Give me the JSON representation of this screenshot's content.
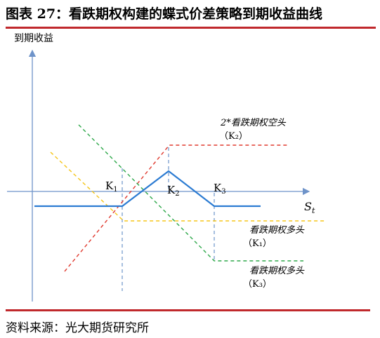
{
  "title": "图表 27：看跌期权构建的蝶式价差策略到期收益曲线",
  "source": "资料来源：光大期货研究所",
  "axes": {
    "y_label": "到期收益",
    "x_label_main": "S",
    "x_label_sub": "t"
  },
  "strikes": [
    {
      "main": "K",
      "sub": "1"
    },
    {
      "main": "K",
      "sub": "2"
    },
    {
      "main": "K",
      "sub": "3"
    }
  ],
  "legs": [
    {
      "label": "2*看跌期权空头",
      "strike": "（K₂）",
      "color": "#e03a2f"
    },
    {
      "label": "看跌期权多头",
      "strike": "（K₁）",
      "color": "#f5c518"
    },
    {
      "label": "看跌期权多头",
      "strike": "（K₃）",
      "color": "#2ea84a"
    }
  ],
  "colors": {
    "accent_rule": "#c0282c",
    "payoff": "#2b7bd2",
    "axis": "#6e93c9",
    "strike_guide": "#4f7fbf"
  }
}
